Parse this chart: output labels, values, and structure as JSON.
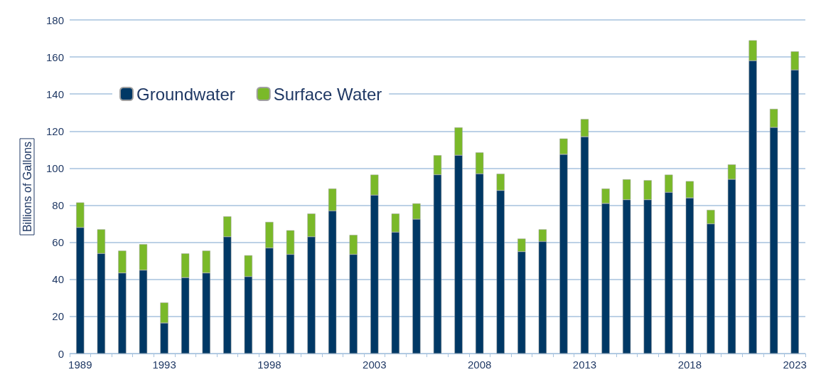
{
  "chart_data": {
    "type": "bar",
    "stacked": true,
    "ylabel": "Billions of Gallons",
    "categories": [
      "1989",
      null,
      null,
      null,
      "1993",
      null,
      null,
      null,
      null,
      "1998",
      null,
      null,
      null,
      null,
      "2003",
      null,
      null,
      null,
      null,
      "2008",
      null,
      null,
      null,
      null,
      "2013",
      null,
      null,
      null,
      null,
      "2018",
      null,
      null,
      null,
      null,
      "2023"
    ],
    "series": [
      {
        "name": "Groundwater",
        "color": "#003865",
        "values": [
          68,
          54,
          43.5,
          45,
          16.5,
          41,
          43.5,
          63,
          41.5,
          57,
          53.5,
          63,
          77,
          53.5,
          85.5,
          65.5,
          72.5,
          96.5,
          107,
          97,
          88,
          55,
          60.5,
          107.5,
          117,
          81,
          83,
          83,
          87,
          84,
          70,
          94,
          158,
          122,
          153
        ]
      },
      {
        "name": "Surface Water",
        "color": "#7ab929",
        "values": [
          13.5,
          13,
          12,
          14,
          11,
          13,
          12,
          11,
          11.5,
          14,
          13,
          12.5,
          12,
          10.5,
          11,
          10,
          8.5,
          10.5,
          15,
          11.5,
          9,
          7,
          6.5,
          8.5,
          9.5,
          8,
          11,
          10.5,
          9.5,
          9,
          7.5,
          8,
          11,
          10,
          10
        ]
      }
    ],
    "ylim": [
      0,
      180
    ],
    "yticks": [
      0,
      20,
      40,
      60,
      80,
      100,
      120,
      140,
      160,
      180
    ],
    "grid": "y",
    "legend": "top left"
  }
}
